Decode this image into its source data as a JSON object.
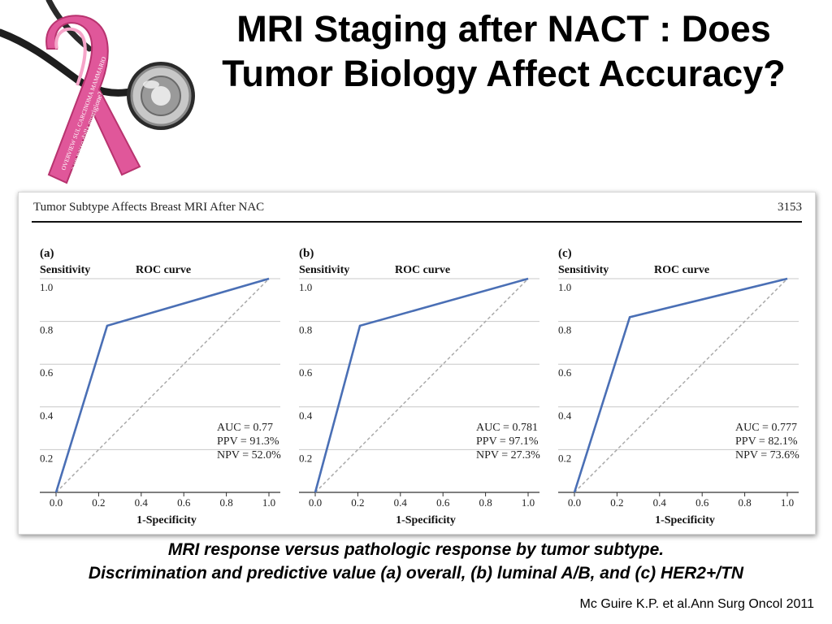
{
  "slide": {
    "title_line1": "MRI Staging after NACT : Does",
    "title_line2": "Tumor Biology Affect Accuracy?",
    "caption_line1": "MRI response versus pathologic response by tumor subtype.",
    "caption_line2": "Discrimination and predictive value (a) overall, (b) luminal A/B, and (c) HER2+/TN",
    "citation": "Mc Guire K.P. et al.Ann Surg Oncol 2011"
  },
  "logo": {
    "ribbon_text_line1": "OVERVIEW SUL CARCINOMA MAMMARIO",
    "ribbon_text_line2": "a un passo dalla guarigione?",
    "colors": {
      "ribbon": "#e0579a",
      "ribbon_dark": "#b8336f",
      "metal": "#b9b9b9"
    }
  },
  "figure": {
    "header_left": "Tumor Subtype Affects Breast MRI After NAC",
    "header_right": "3153"
  },
  "colors": {
    "roc_line": "#4a6fb5",
    "diagonal": "#aaaaaa",
    "grid": "#c8c8c8"
  },
  "chart_data": [
    {
      "type": "line",
      "panel_label": "(a)",
      "title": "ROC curve",
      "xlabel": "1-Specificity",
      "ylabel": "Sensitivity",
      "xlim": [
        0,
        1
      ],
      "ylim": [
        0,
        1
      ],
      "x_ticks": [
        "0.0",
        "0.2",
        "0.4",
        "0.6",
        "0.8",
        "1.0"
      ],
      "y_ticks": [
        "0.2",
        "0.4",
        "0.6",
        "0.8",
        "1.0"
      ],
      "grid": true,
      "series": [
        {
          "x": [
            0.0,
            0.24,
            1.0
          ],
          "y": [
            0.0,
            0.78,
            1.0
          ]
        }
      ],
      "reference_line": {
        "x": [
          0,
          1
        ],
        "y": [
          0,
          1
        ]
      },
      "annotations": [
        "AUC = 0.77",
        "PPV = 91.3%",
        "NPV = 52.0%"
      ]
    },
    {
      "type": "line",
      "panel_label": "(b)",
      "title": "ROC curve",
      "xlabel": "1-Specificity",
      "ylabel": "Sensitivity",
      "xlim": [
        0,
        1
      ],
      "ylim": [
        0,
        1
      ],
      "x_ticks": [
        "0.0",
        "0.2",
        "0.4",
        "0.6",
        "0.8",
        "1.0"
      ],
      "y_ticks": [
        "0.2",
        "0.4",
        "0.6",
        "0.8",
        "1.0"
      ],
      "grid": true,
      "series": [
        {
          "x": [
            0.0,
            0.21,
            1.0
          ],
          "y": [
            0.0,
            0.78,
            1.0
          ]
        }
      ],
      "reference_line": {
        "x": [
          0,
          1
        ],
        "y": [
          0,
          1
        ]
      },
      "annotations": [
        "AUC = 0.781",
        "PPV = 97.1%",
        "NPV = 27.3%"
      ]
    },
    {
      "type": "line",
      "panel_label": "(c)",
      "title": "ROC curve",
      "xlabel": "1-Specificity",
      "ylabel": "Sensitivity",
      "xlim": [
        0,
        1
      ],
      "ylim": [
        0,
        1
      ],
      "x_ticks": [
        "0.0",
        "0.2",
        "0.4",
        "0.6",
        "0.8",
        "1.0"
      ],
      "y_ticks": [
        "0.2",
        "0.4",
        "0.6",
        "0.8",
        "1.0"
      ],
      "grid": true,
      "series": [
        {
          "x": [
            0.0,
            0.26,
            1.0
          ],
          "y": [
            0.0,
            0.82,
            1.0
          ]
        }
      ],
      "reference_line": {
        "x": [
          0,
          1
        ],
        "y": [
          0,
          1
        ]
      },
      "annotations": [
        "AUC = 0.777",
        "PPV = 82.1%",
        "NPV = 73.6%"
      ]
    }
  ]
}
